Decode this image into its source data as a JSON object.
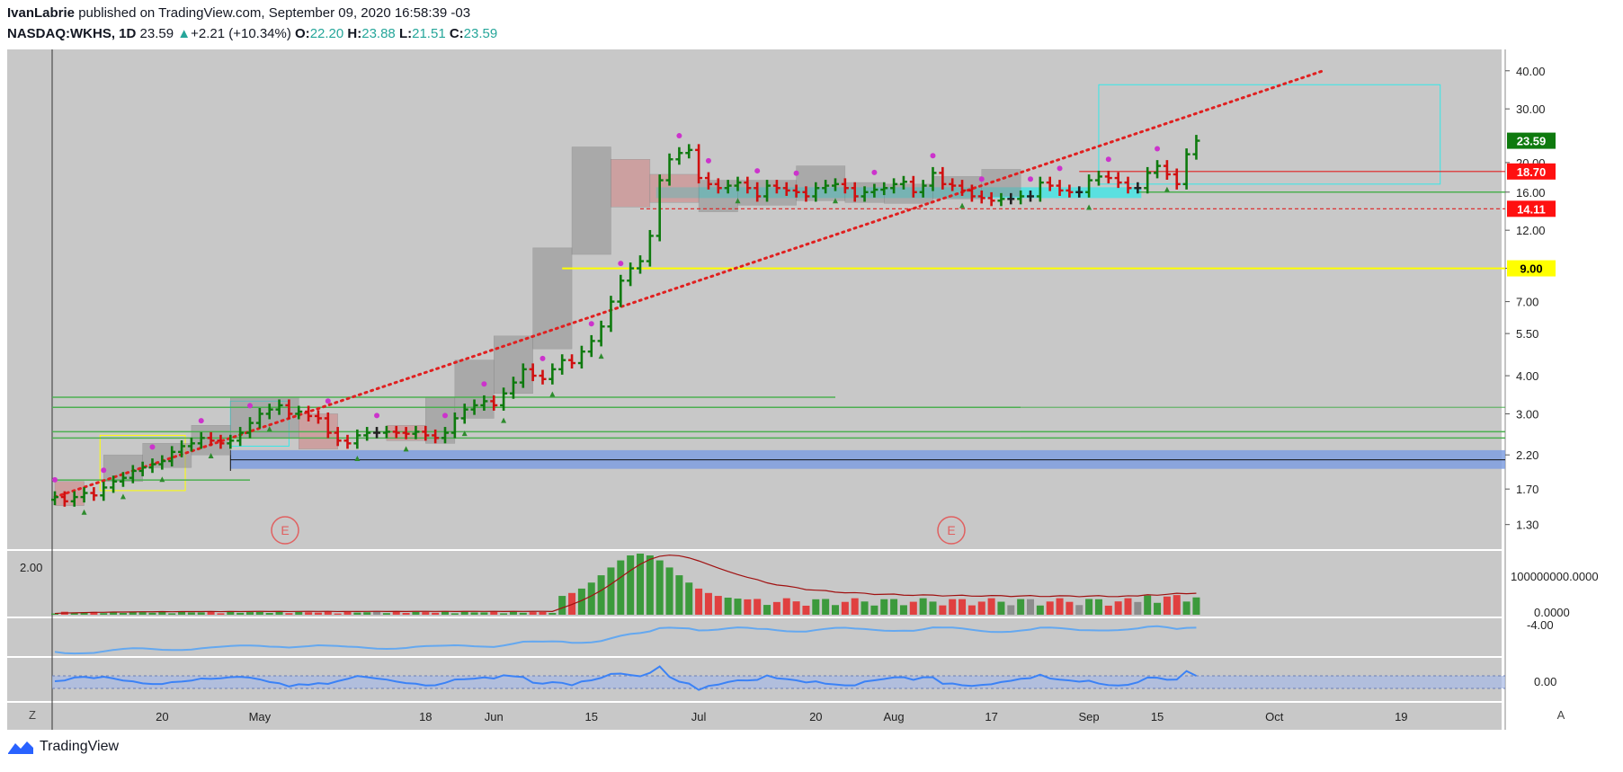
{
  "header": {
    "author": "IvanLabrie",
    "published_text": "published on TradingView.com, September 09, 2020 16:58:39 -03",
    "symbol": "NASDAQ:WKHS, 1D",
    "last": "23.59",
    "change_arrow": "▲",
    "change": "+2.21 (+10.34%)",
    "o_label": "O:",
    "o_value": "22.20",
    "h_label": "H:",
    "h_value": "23.88",
    "l_label": "L:",
    "l_value": "21.51",
    "c_label": "C:",
    "c_value": "23.59"
  },
  "footer": {
    "brand": "TradingView",
    "logo_icon": "tradingview-logo-icon"
  },
  "colors": {
    "pane_bg": "#c8c8c8",
    "up": "#0e7a0e",
    "down": "#d01010",
    "neutral": "#222222",
    "trend": "#e02020",
    "yellow": "#ffff00",
    "cyan": "#35e8e8",
    "blue_zone": "#7f9fe0",
    "green_level": "#4caf50",
    "vol_up": "#3c9a3c",
    "vol_down": "#e04040",
    "vol_neutral": "#8c8c8c",
    "avg_line": "#a01010",
    "osc_line": "#3b82f6",
    "osc_line2": "#64a8f0",
    "magenta": "#cc33cc"
  },
  "chart_data": {
    "type": "candlestick",
    "scale": "log",
    "ylim": [
      1.08,
      47
    ],
    "y_ticks": [
      "40.00",
      "30.00",
      "20.00",
      "16.00",
      "12.00",
      "9.00",
      "7.00",
      "5.50",
      "4.00",
      "3.00",
      "2.20",
      "1.70",
      "1.30"
    ],
    "x_ticks": [
      {
        "label": "20",
        "day": 11
      },
      {
        "label": "May",
        "day": 21
      },
      {
        "label": "18",
        "day": 38
      },
      {
        "label": "Jun",
        "day": 45
      },
      {
        "label": "15",
        "day": 55
      },
      {
        "label": "Jul",
        "day": 66
      },
      {
        "label": "20",
        "day": 78
      },
      {
        "label": "Aug",
        "day": 86
      },
      {
        "label": "17",
        "day": 96
      },
      {
        "label": "Sep",
        "day": 106
      },
      {
        "label": "15",
        "day": 113
      },
      {
        "label": "Oct",
        "day": 125
      },
      {
        "label": "19",
        "day": 138
      }
    ],
    "last_day": 119,
    "closes": [
      1.6,
      1.55,
      1.6,
      1.65,
      1.62,
      1.72,
      1.8,
      1.85,
      1.95,
      2.0,
      2.05,
      2.1,
      2.25,
      2.35,
      2.4,
      2.5,
      2.45,
      2.4,
      2.45,
      2.6,
      2.8,
      3.0,
      3.1,
      3.2,
      3.0,
      3.05,
      2.95,
      2.9,
      2.6,
      2.45,
      2.4,
      2.55,
      2.6,
      2.6,
      2.62,
      2.6,
      2.58,
      2.62,
      2.55,
      2.5,
      2.6,
      2.9,
      3.1,
      3.2,
      3.3,
      3.2,
      3.5,
      3.8,
      4.2,
      4.0,
      3.9,
      4.2,
      4.5,
      4.4,
      4.8,
      5.2,
      5.8,
      7.0,
      8.2,
      9.0,
      9.5,
      11.5,
      17.5,
      20.5,
      21.5,
      22.0,
      17.8,
      17.0,
      16.5,
      16.8,
      17.2,
      16.5,
      15.5,
      16.8,
      16.5,
      16.2,
      16.0,
      15.5,
      16.5,
      16.8,
      17.0,
      16.5,
      15.5,
      16.0,
      16.3,
      16.5,
      17.0,
      17.3,
      16.0,
      16.8,
      18.5,
      17.0,
      16.8,
      16.2,
      15.5,
      15.3,
      15.0,
      15.2,
      15.2,
      15.5,
      15.5,
      17.2,
      16.8,
      16.2,
      16.0,
      16.0,
      17.5,
      18.0,
      17.8,
      17.2,
      16.5,
      16.5,
      18.5,
      19.5,
      18.3,
      17.0,
      21.3,
      23.59
    ],
    "resistance_levels": [
      18.7,
      14.11
    ],
    "support_levels": [
      9.0
    ],
    "level_labels": [
      "23.59",
      "18.70",
      "14.11",
      "9.00"
    ],
    "earnings_markers": [
      "E",
      "E"
    ],
    "volume_label": "2.00",
    "volume_right_labels": [
      "100000000.0000",
      "0.0000"
    ],
    "osc1_labels": [
      "-4.00"
    ],
    "osc2_labels": [
      "0.00"
    ],
    "corner_labels": [
      "Z",
      "A"
    ]
  }
}
